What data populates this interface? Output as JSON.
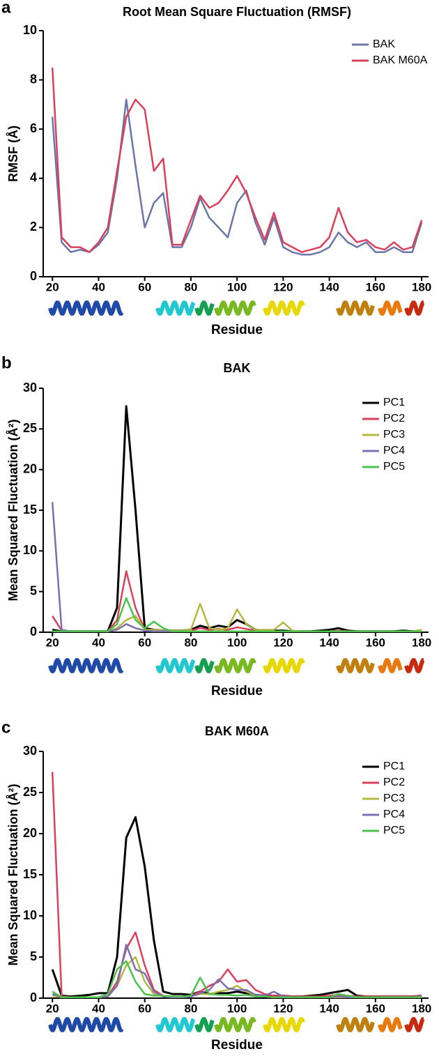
{
  "chart_data": [
    {
      "type": "line",
      "panel_label": "a",
      "title": "Root Mean Square Fluctuation (RMSF)",
      "xlabel": "Residue",
      "ylabel": "RMSF (Å)",
      "x": [
        20,
        24,
        28,
        32,
        36,
        40,
        44,
        48,
        52,
        56,
        60,
        64,
        68,
        72,
        76,
        80,
        84,
        88,
        92,
        96,
        100,
        104,
        108,
        112,
        116,
        120,
        124,
        128,
        132,
        136,
        140,
        144,
        148,
        152,
        156,
        160,
        164,
        168,
        172,
        176,
        180
      ],
      "series": [
        {
          "name": "BAK",
          "color": "#6a75a8",
          "values": [
            6.5,
            1.4,
            1.0,
            1.1,
            1.0,
            1.3,
            1.8,
            4.0,
            7.2,
            4.5,
            2.0,
            3.0,
            3.4,
            1.2,
            1.2,
            2.0,
            3.2,
            2.4,
            2.0,
            1.6,
            3.0,
            3.5,
            2.2,
            1.3,
            2.4,
            1.2,
            1.0,
            0.9,
            0.9,
            1.0,
            1.2,
            1.8,
            1.4,
            1.2,
            1.4,
            1.0,
            1.0,
            1.2,
            1.0,
            1.0,
            2.2
          ]
        },
        {
          "name": "BAK M60A",
          "color": "#d9405a",
          "values": [
            8.5,
            1.6,
            1.2,
            1.2,
            1.0,
            1.4,
            2.0,
            4.3,
            6.5,
            7.2,
            6.8,
            4.3,
            4.8,
            1.3,
            1.3,
            2.3,
            3.3,
            2.8,
            3.0,
            3.5,
            4.1,
            3.4,
            2.4,
            1.5,
            2.6,
            1.4,
            1.2,
            1.0,
            1.1,
            1.2,
            1.6,
            2.8,
            1.8,
            1.4,
            1.5,
            1.2,
            1.1,
            1.4,
            1.1,
            1.2,
            2.3
          ]
        }
      ],
      "xlim": [
        16,
        183
      ],
      "ylim": [
        0,
        10
      ],
      "xticks": [
        20,
        40,
        60,
        80,
        100,
        120,
        140,
        160,
        180
      ],
      "yticks": [
        0,
        2,
        4,
        6,
        8,
        10
      ],
      "legend": "upper right"
    },
    {
      "type": "line",
      "panel_label": "b",
      "title": "BAK",
      "xlabel": "Residue",
      "ylabel": "Mean Squared Fluctuation (Å²)",
      "x": [
        20,
        24,
        28,
        32,
        36,
        40,
        44,
        48,
        52,
        56,
        60,
        64,
        68,
        72,
        76,
        80,
        84,
        88,
        92,
        96,
        100,
        104,
        108,
        112,
        116,
        120,
        124,
        128,
        132,
        136,
        140,
        144,
        148,
        152,
        156,
        160,
        164,
        168,
        172,
        176,
        180
      ],
      "series": [
        {
          "name": "PC1",
          "color": "#000000",
          "values": [
            0.3,
            0.1,
            0.1,
            0.1,
            0.1,
            0.1,
            0.1,
            3,
            27.8,
            15,
            0.5,
            0.3,
            0.2,
            0.2,
            0.2,
            0.3,
            0.8,
            0.5,
            0.8,
            0.6,
            1.5,
            1.0,
            0.3,
            0.2,
            0.2,
            0.2,
            0.1,
            0.1,
            0.1,
            0.2,
            0.3,
            0.5,
            0.2,
            0.1,
            0.1,
            0.1,
            0.1,
            0.1,
            0.2,
            0.1,
            0.2
          ]
        },
        {
          "name": "PC2",
          "color": "#d9405a",
          "values": [
            2.0,
            0.2,
            0.1,
            0.1,
            0.1,
            0.1,
            0.1,
            1.5,
            7.5,
            3.0,
            0.3,
            0.2,
            0.1,
            0.1,
            0.1,
            0.2,
            0.5,
            0.3,
            0.4,
            0.3,
            0.6,
            0.4,
            0.2,
            0.1,
            0.1,
            0.1,
            0.1,
            0.1,
            0.1,
            0.1,
            0.1,
            0.2,
            0.1,
            0.1,
            0.1,
            0.1,
            0.1,
            0.1,
            0.1,
            0.1,
            0.1
          ]
        },
        {
          "name": "PC3",
          "color": "#b5b840",
          "values": [
            0.1,
            0.1,
            0.1,
            0.1,
            0.1,
            0.1,
            0.1,
            0.5,
            1.5,
            2.0,
            0.3,
            0.3,
            0.2,
            0.2,
            0.2,
            0.3,
            3.5,
            0.5,
            0.3,
            0.5,
            2.8,
            1.0,
            0.3,
            0.3,
            0.3,
            1.2,
            0.2,
            0.1,
            0.1,
            0.1,
            0.1,
            0.1,
            0.1,
            0.1,
            0.1,
            0.1,
            0.1,
            0.1,
            0.1,
            0.1,
            0.3
          ]
        },
        {
          "name": "PC4",
          "color": "#7b6fb0",
          "values": [
            16,
            0.3,
            0.1,
            0.1,
            0.1,
            0.1,
            0.1,
            0.3,
            1.0,
            0.5,
            0.2,
            0.1,
            0.1,
            0.1,
            0.1,
            0.1,
            0.1,
            0.1,
            0.1,
            0.1,
            0.1,
            0.1,
            0.1,
            0.1,
            0.1,
            0.1,
            0.1,
            0.1,
            0.1,
            0.1,
            0.1,
            0.1,
            0.1,
            0.1,
            0.1,
            0.1,
            0.1,
            0.1,
            0.1,
            0.1,
            0.1
          ]
        },
        {
          "name": "PC5",
          "color": "#4cc24c",
          "values": [
            0.1,
            0.1,
            0.1,
            0.1,
            0.1,
            0.1,
            0.1,
            1.0,
            4.2,
            1.5,
            0.5,
            1.3,
            0.5,
            0.1,
            0.1,
            0.1,
            0.1,
            0.1,
            0.1,
            0.1,
            0.1,
            0.1,
            0.1,
            0.1,
            0.1,
            0.1,
            0.1,
            0.1,
            0.1,
            0.1,
            0.1,
            0.1,
            0.1,
            0.1,
            0.1,
            0.1,
            0.1,
            0.1,
            0.1,
            0.1,
            0.1
          ]
        }
      ],
      "xlim": [
        16,
        183
      ],
      "ylim": [
        0,
        30
      ],
      "xticks": [
        20,
        40,
        60,
        80,
        100,
        120,
        140,
        160,
        180
      ],
      "yticks": [
        0,
        5,
        10,
        15,
        20,
        25,
        30
      ],
      "legend": "upper right"
    },
    {
      "type": "line",
      "panel_label": "c",
      "title": "BAK M60A",
      "xlabel": "Residue",
      "ylabel": "Mean Squared Fluctuation (Å²)",
      "x": [
        20,
        24,
        28,
        32,
        36,
        40,
        44,
        48,
        52,
        56,
        60,
        64,
        68,
        72,
        76,
        80,
        84,
        88,
        92,
        96,
        100,
        104,
        108,
        112,
        116,
        120,
        124,
        128,
        132,
        136,
        140,
        144,
        148,
        152,
        156,
        160,
        164,
        168,
        172,
        176,
        180
      ],
      "series": [
        {
          "name": "PC1",
          "color": "#000000",
          "values": [
            3.5,
            0.3,
            0.2,
            0.3,
            0.4,
            0.6,
            0.6,
            5,
            19.5,
            22,
            16,
            7,
            0.8,
            0.5,
            0.5,
            0.4,
            0.8,
            0.5,
            0.6,
            0.6,
            0.8,
            0.6,
            0.4,
            0.3,
            0.3,
            0.3,
            0.2,
            0.2,
            0.3,
            0.4,
            0.6,
            0.8,
            1.0,
            0.3,
            0.2,
            0.2,
            0.2,
            0.2,
            0.2,
            0.2,
            0.3
          ]
        },
        {
          "name": "PC2",
          "color": "#d9405a",
          "values": [
            27.5,
            0.2,
            0.1,
            0.1,
            0.1,
            0.1,
            0.2,
            2,
            6,
            8,
            4,
            1,
            0.3,
            0.2,
            0.2,
            0.3,
            0.8,
            1.5,
            2.0,
            3.5,
            2.0,
            2.2,
            1.0,
            0.5,
            0.3,
            0.3,
            0.2,
            0.2,
            0.2,
            0.2,
            0.3,
            0.4,
            0.3,
            0.2,
            0.2,
            0.2,
            0.2,
            0.2,
            0.2,
            0.2,
            0.3
          ]
        },
        {
          "name": "PC3",
          "color": "#b5b840",
          "values": [
            0.3,
            0.1,
            0.1,
            0.1,
            0.1,
            0.1,
            0.2,
            1.5,
            4,
            5,
            2,
            0.5,
            0.2,
            0.1,
            0.1,
            0.2,
            0.5,
            0.5,
            0.8,
            1.0,
            1.5,
            0.8,
            0.3,
            0.2,
            0.1,
            0.1,
            0.1,
            0.1,
            0.1,
            0.1,
            0.1,
            0.1,
            0.1,
            0.1,
            0.1,
            0.1,
            0.1,
            0.1,
            0.1,
            0.1,
            0.1
          ]
        },
        {
          "name": "PC4",
          "color": "#7b6fb0",
          "values": [
            0.5,
            0.1,
            0.1,
            0.1,
            0.1,
            0.1,
            0.2,
            1.5,
            6.5,
            3.5,
            3,
            0.8,
            0.2,
            0.1,
            0.1,
            0.2,
            0.6,
            1,
            2.3,
            1.2,
            1.0,
            1.0,
            0.4,
            0.3,
            0.8,
            0.2,
            0.1,
            0.1,
            0.1,
            0.1,
            0.1,
            0.2,
            0.1,
            0.1,
            0.1,
            0.1,
            0.1,
            0.1,
            0.1,
            0.1,
            0.2
          ]
        },
        {
          "name": "PC5",
          "color": "#4cc24c",
          "values": [
            0.8,
            0.1,
            0.1,
            0.1,
            0.1,
            0.1,
            0.5,
            3.5,
            4.5,
            2,
            0.5,
            0.3,
            0.3,
            0.2,
            0.2,
            0.3,
            2.5,
            0.5,
            0.4,
            0.4,
            0.3,
            0.4,
            0.2,
            0.2,
            0.1,
            0.1,
            0.1,
            0.1,
            0.1,
            0.1,
            0.1,
            0.5,
            0.3,
            0.1,
            0.1,
            0.1,
            0.1,
            0.1,
            0.1,
            0.1,
            0.1
          ]
        }
      ],
      "xlim": [
        16,
        183
      ],
      "ylim": [
        0,
        30
      ],
      "xticks": [
        20,
        40,
        60,
        80,
        100,
        120,
        140,
        160,
        180
      ],
      "yticks": [
        0,
        5,
        10,
        15,
        20,
        25,
        30
      ],
      "legend": "upper right"
    }
  ]
}
